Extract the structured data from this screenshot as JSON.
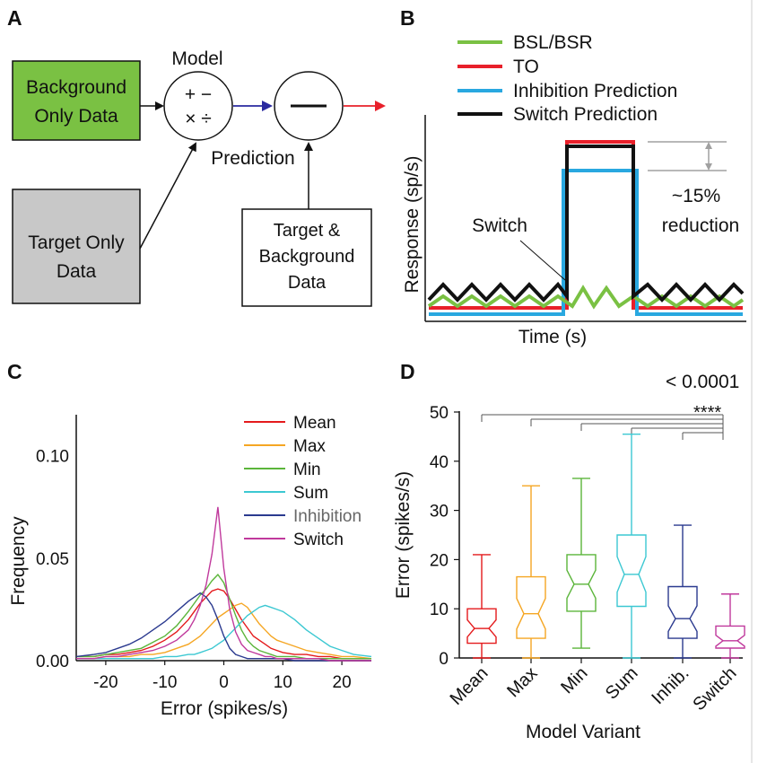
{
  "colors": {
    "mean": "#e41a1c",
    "max": "#f5a623",
    "min": "#5bb53a",
    "sum": "#3cc8d2",
    "inhibition": "#2b3a8f",
    "switch": "#c0399c",
    "bsl": "#7ac143",
    "to": "#e8202a",
    "inhibition_pred": "#29a8e0",
    "switch_pred": "#111111",
    "bg_box": "#7ac143",
    "target_box": "#c8c8c8",
    "blue_arrow": "#2a2aa0",
    "red_arrow": "#e8202a",
    "bracket": "#a0a0a0"
  },
  "panel_a": {
    "label": "A",
    "background_only": [
      "Background",
      "Only Data"
    ],
    "target_only": [
      "Target Only",
      "Data"
    ],
    "target_background": [
      "Target &",
      "Background",
      "Data"
    ],
    "model_label": "Model",
    "operators_top": "+ −",
    "operators_bottom": "× ÷",
    "prediction_label": "Prediction"
  },
  "panel_b": {
    "label": "B",
    "legend": [
      "BSL/BSR",
      "TO",
      "Inhibition Prediction",
      "Switch Prediction"
    ],
    "ylabel": "Response (sp/s)",
    "xlabel": "Time (s)",
    "switch_label": "Switch",
    "reduction_label": [
      "~15%",
      "reduction"
    ]
  },
  "panel_d_extra": {
    "pvalue": "< 0.0001",
    "stars": "****"
  },
  "chart_data": [
    {
      "type": "line",
      "panel": "C",
      "title": "",
      "xlabel": "Error (spikes/s)",
      "ylabel": "Frequency",
      "xlim": [
        -25,
        25
      ],
      "ylim": [
        0,
        0.12
      ],
      "xticks": [
        "-20",
        "-10",
        "0",
        "10",
        "20"
      ],
      "yticks": [
        "0.00",
        "0.05",
        "0.10"
      ],
      "legend_position": "top-right",
      "x": [
        -25,
        -22,
        -20,
        -18,
        -16,
        -14,
        -12,
        -10,
        -8,
        -6,
        -5,
        -4,
        -3,
        -2,
        -1,
        0,
        1,
        2,
        3,
        4,
        5,
        6,
        7,
        8,
        9,
        10,
        12,
        14,
        16,
        18,
        20,
        22,
        25
      ],
      "series": [
        {
          "name": "Mean",
          "values": [
            0.002,
            0.002,
            0.003,
            0.003,
            0.004,
            0.005,
            0.007,
            0.01,
            0.014,
            0.02,
            0.024,
            0.028,
            0.031,
            0.034,
            0.035,
            0.034,
            0.03,
            0.025,
            0.02,
            0.016,
            0.012,
            0.01,
            0.008,
            0.006,
            0.005,
            0.004,
            0.003,
            0.003,
            0.002,
            0.002,
            0.001,
            0.001,
            0.001
          ]
        },
        {
          "name": "Max",
          "values": [
            0.001,
            0.001,
            0.002,
            0.002,
            0.002,
            0.003,
            0.003,
            0.004,
            0.006,
            0.008,
            0.01,
            0.012,
            0.015,
            0.018,
            0.021,
            0.023,
            0.025,
            0.027,
            0.028,
            0.026,
            0.022,
            0.018,
            0.015,
            0.012,
            0.01,
            0.009,
            0.007,
            0.005,
            0.004,
            0.003,
            0.002,
            0.002,
            0.001
          ]
        },
        {
          "name": "Min",
          "values": [
            0.002,
            0.002,
            0.003,
            0.004,
            0.005,
            0.006,
            0.009,
            0.012,
            0.017,
            0.024,
            0.028,
            0.032,
            0.035,
            0.039,
            0.042,
            0.038,
            0.03,
            0.022,
            0.015,
            0.01,
            0.007,
            0.005,
            0.004,
            0.003,
            0.002,
            0.002,
            0.002,
            0.001,
            0.001,
            0.001,
            0.001,
            0.001,
            0.001
          ]
        },
        {
          "name": "Sum",
          "values": [
            0.001,
            0.001,
            0.001,
            0.001,
            0.001,
            0.001,
            0.001,
            0.002,
            0.002,
            0.003,
            0.003,
            0.004,
            0.005,
            0.006,
            0.008,
            0.01,
            0.013,
            0.016,
            0.019,
            0.022,
            0.024,
            0.026,
            0.027,
            0.026,
            0.025,
            0.024,
            0.02,
            0.015,
            0.011,
            0.007,
            0.005,
            0.003,
            0.002
          ]
        },
        {
          "name": "Inhibition",
          "values": [
            0.002,
            0.003,
            0.004,
            0.006,
            0.008,
            0.011,
            0.015,
            0.019,
            0.024,
            0.029,
            0.031,
            0.033,
            0.031,
            0.027,
            0.02,
            0.012,
            0.006,
            0.003,
            0.002,
            0.001,
            0.001,
            0.001,
            0.001,
            0.001,
            0.001,
            0.001,
            0.0,
            0.0,
            0.0,
            0.0,
            0.0,
            0.0,
            0.0
          ]
        },
        {
          "name": "Switch",
          "values": [
            0.001,
            0.001,
            0.002,
            0.002,
            0.003,
            0.004,
            0.005,
            0.007,
            0.01,
            0.015,
            0.02,
            0.027,
            0.037,
            0.052,
            0.075,
            0.045,
            0.025,
            0.014,
            0.008,
            0.005,
            0.004,
            0.003,
            0.002,
            0.002,
            0.001,
            0.001,
            0.001,
            0.001,
            0.001,
            0.0,
            0.0,
            0.0,
            0.0
          ]
        }
      ]
    },
    {
      "type": "box",
      "panel": "D",
      "title": "",
      "xlabel": "Model Variant",
      "ylabel": "Error (spikes/s)",
      "ylim": [
        0,
        50
      ],
      "yticks": [
        "0",
        "10",
        "20",
        "30",
        "40",
        "50"
      ],
      "categories": [
        "Mean",
        "Max",
        "Min",
        "Sum",
        "Inhib.",
        "Switch"
      ],
      "boxes": [
        {
          "name": "Mean",
          "whisker_low": 0,
          "q1": 3,
          "median": 6,
          "q3": 10,
          "whisker_high": 21
        },
        {
          "name": "Max",
          "whisker_low": 0,
          "q1": 4,
          "median": 9,
          "q3": 16.5,
          "whisker_high": 35
        },
        {
          "name": "Min",
          "whisker_low": 2,
          "q1": 9.5,
          "median": 15,
          "q3": 21,
          "whisker_high": 36.5
        },
        {
          "name": "Sum",
          "whisker_low": 0,
          "q1": 10.5,
          "median": 17,
          "q3": 25,
          "whisker_high": 45.5
        },
        {
          "name": "Inhib.",
          "whisker_low": 0,
          "q1": 4,
          "median": 8,
          "q3": 14.5,
          "whisker_high": 27
        },
        {
          "name": "Switch",
          "whisker_low": 0,
          "q1": 2,
          "median": 3.5,
          "q3": 6.5,
          "whisker_high": 13
        }
      ]
    }
  ]
}
